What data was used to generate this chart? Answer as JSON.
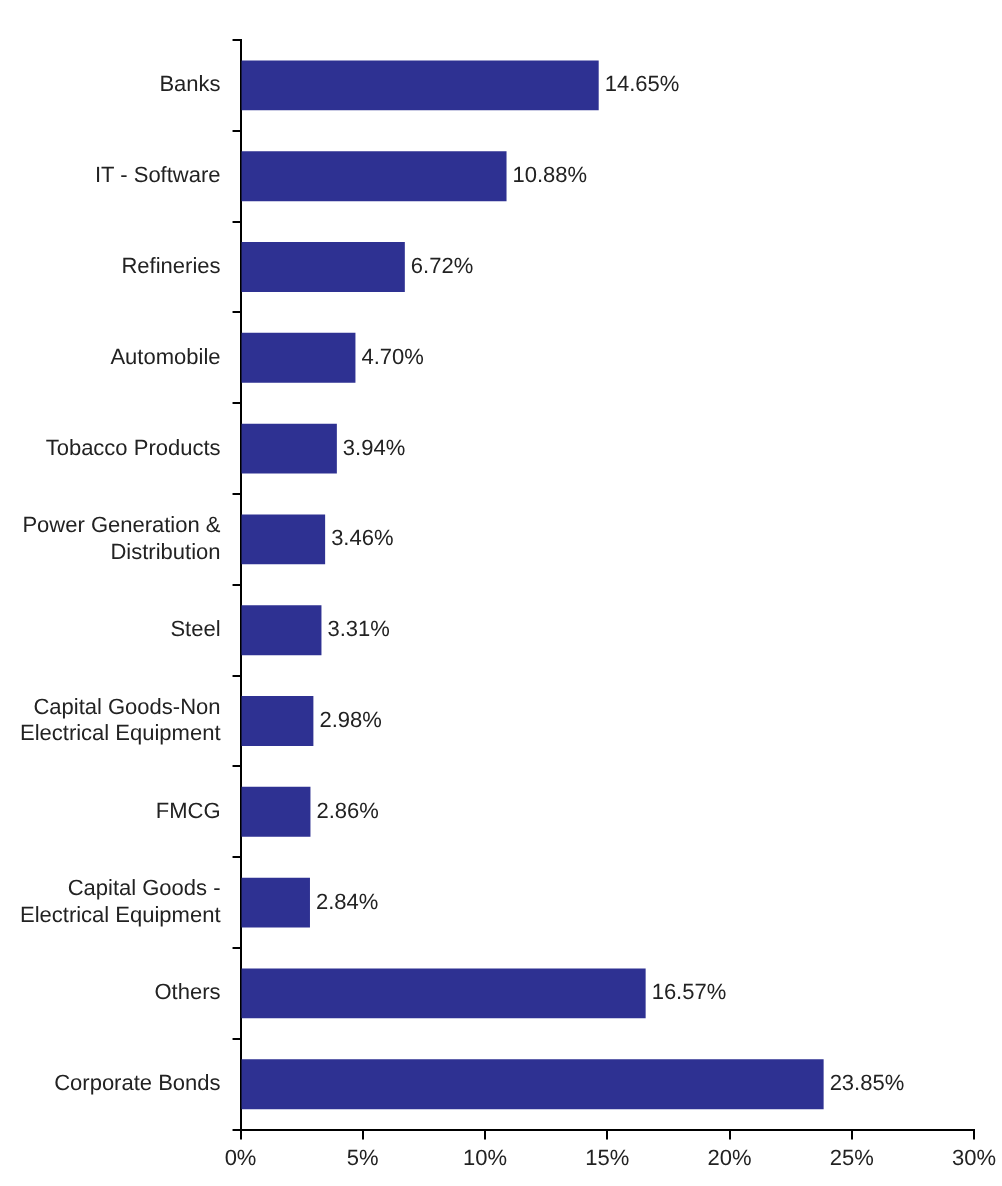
{
  "chart_data": {
    "type": "bar",
    "orientation": "horizontal",
    "categories": [
      "Banks",
      "IT - Software",
      "Refineries",
      "Automobile",
      "Tobacco Products",
      "Power Generation & Distribution",
      "Steel",
      "Capital Goods-Non Electrical Equipment",
      "FMCG",
      "Capital Goods - Electrical Equipment",
      "Others",
      "Corporate Bonds"
    ],
    "values": [
      14.65,
      10.88,
      6.72,
      4.7,
      3.94,
      3.46,
      3.31,
      2.98,
      2.86,
      2.84,
      16.57,
      23.85
    ],
    "value_labels": [
      "14.65%",
      "10.88%",
      "6.72%",
      "4.70%",
      "3.94%",
      "3.46%",
      "3.31%",
      "2.98%",
      "2.86%",
      "2.84%",
      "16.57%",
      "23.85%"
    ],
    "color": "#2e3192",
    "xlim": [
      0,
      30
    ],
    "xticks": [
      {
        "value": 0,
        "label": "0%"
      },
      {
        "value": 5,
        "label": "5%"
      },
      {
        "value": 10,
        "label": "10%"
      },
      {
        "value": 15,
        "label": "15%"
      },
      {
        "value": 20,
        "label": "20%"
      },
      {
        "value": 25,
        "label": "25%"
      },
      {
        "value": 30,
        "label": "30%"
      }
    ],
    "grid": false,
    "legend": false
  }
}
